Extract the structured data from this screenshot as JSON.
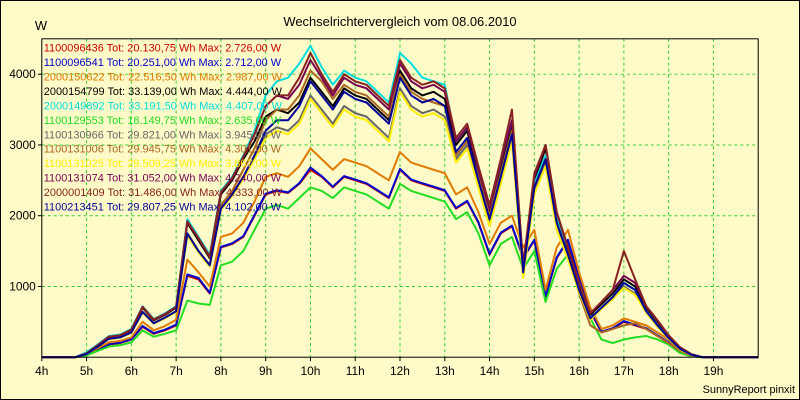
{
  "chart_data": {
    "type": "line",
    "title": "Wechselrichtervergleich vom 08.06.2010",
    "ylabel": "W",
    "footer": "SunnyReport pinxit",
    "ylim": [
      0,
      4500
    ],
    "yticks": [
      1000,
      2000,
      3000,
      4000
    ],
    "xticks": [
      "4h",
      "5h",
      "6h",
      "7h",
      "8h",
      "9h",
      "10h",
      "11h",
      "12h",
      "13h",
      "14h",
      "15h",
      "16h",
      "17h",
      "18h",
      "19h"
    ],
    "x_start_hour": 4.0,
    "x_end_hour": 20.0,
    "legend_placement": "top-left",
    "grid": true,
    "colors": {
      "background": "#fffbc8",
      "grid": "#33cc33",
      "axis": "#000000"
    },
    "series": [
      {
        "name": "1100096436 Tot: 20.130,75 Wh Max: 2.726,00 W",
        "color": "#cc0000",
        "values": [
          0,
          0,
          0,
          0,
          30,
          110,
          180,
          200,
          250,
          430,
          330,
          380,
          450,
          1150,
          1100,
          900,
          1550,
          1600,
          1700,
          2000,
          2300,
          2350,
          2320,
          2450,
          2650,
          2550,
          2400,
          2550,
          2500,
          2450,
          2350,
          2250,
          2650,
          2500,
          2450,
          2400,
          2350,
          2100,
          2200,
          1900,
          1450,
          1750,
          1850,
          1400,
          1650,
          850,
          1400,
          1650,
          1100,
          650,
          350,
          400,
          500,
          450,
          400,
          300,
          200,
          80,
          20,
          0,
          0,
          0,
          0,
          0,
          0
        ]
      },
      {
        "name": "1100096541 Tot: 20.251,00 Wh Max: 2.712,00 W",
        "color": "#0000cc",
        "values": [
          0,
          0,
          0,
          0,
          30,
          110,
          185,
          205,
          255,
          440,
          340,
          390,
          460,
          1170,
          1120,
          910,
          1560,
          1610,
          1710,
          2010,
          2310,
          2360,
          2330,
          2460,
          2680,
          2560,
          2410,
          2560,
          2510,
          2460,
          2360,
          2260,
          2660,
          2510,
          2460,
          2410,
          2360,
          2110,
          2210,
          1910,
          1460,
          1760,
          1860,
          1410,
          1660,
          860,
          1410,
          1660,
          1110,
          660,
          360,
          410,
          510,
          460,
          410,
          310,
          210,
          85,
          25,
          0,
          0,
          0,
          0,
          0,
          0
        ]
      },
      {
        "name": "2000150622 Tot: 22.516,50 Wh Max: 2.987,00 W",
        "color": "#e07a00",
        "values": [
          0,
          0,
          0,
          0,
          35,
          130,
          210,
          230,
          280,
          500,
          380,
          440,
          530,
          1380,
          1200,
          1000,
          1700,
          1750,
          1900,
          2200,
          2550,
          2600,
          2550,
          2700,
          2950,
          2800,
          2650,
          2800,
          2750,
          2700,
          2600,
          2500,
          2900,
          2750,
          2700,
          2650,
          2600,
          2300,
          2400,
          2050,
          1600,
          1900,
          2000,
          1550,
          1800,
          950,
          1550,
          1800,
          1200,
          700,
          400,
          450,
          550,
          500,
          450,
          350,
          250,
          100,
          30,
          0,
          0,
          0,
          0,
          0,
          0
        ]
      },
      {
        "name": "2000154799 Tot: 33.139,00 Wh Max: 4.444,00 W",
        "color": "#000000",
        "values": [
          0,
          0,
          0,
          0,
          50,
          160,
          280,
          300,
          380,
          700,
          520,
          600,
          700,
          1900,
          1650,
          1400,
          2300,
          2500,
          2800,
          3050,
          3400,
          3500,
          3450,
          3600,
          3950,
          3750,
          3550,
          3800,
          3700,
          3650,
          3500,
          3350,
          4050,
          3800,
          3700,
          3750,
          3650,
          3000,
          3200,
          2600,
          2050,
          2700,
          3300,
          1250,
          2500,
          2950,
          2000,
          1500,
          1000,
          600,
          750,
          900,
          1100,
          1000,
          700,
          500,
          300,
          130,
          40,
          0,
          0,
          0,
          0,
          0,
          0
        ]
      },
      {
        "name": "2000149892 Tot: 33.191,50 Wh Max: 4.407,00 W",
        "color": "#00dddd",
        "values": [
          0,
          0,
          0,
          0,
          70,
          180,
          300,
          320,
          400,
          720,
          540,
          620,
          720,
          1950,
          1700,
          1450,
          2350,
          2550,
          2850,
          3200,
          3700,
          3900,
          3950,
          4150,
          4400,
          4100,
          3850,
          4050,
          3950,
          3900,
          3750,
          3600,
          4300,
          4150,
          3950,
          3900,
          3850,
          3050,
          3250,
          2650,
          2100,
          2750,
          3350,
          1300,
          2450,
          2850,
          1950,
          1450,
          950,
          550,
          700,
          850,
          1050,
          950,
          650,
          450,
          280,
          120,
          35,
          0,
          0,
          0,
          0,
          0,
          0
        ]
      },
      {
        "name": "1100129553 Tot: 18.149,75 Wh Max: 2.635,00 W",
        "color": "#22dd22",
        "values": [
          0,
          0,
          0,
          0,
          25,
          90,
          150,
          170,
          210,
          380,
          290,
          330,
          380,
          800,
          760,
          740,
          1300,
          1350,
          1500,
          1800,
          2100,
          2150,
          2100,
          2250,
          2400,
          2350,
          2250,
          2400,
          2350,
          2300,
          2200,
          2100,
          2450,
          2350,
          2300,
          2250,
          2200,
          1950,
          2050,
          1750,
          1300,
          1600,
          1700,
          1250,
          1500,
          780,
          1250,
          1450,
          950,
          550,
          250,
          200,
          250,
          280,
          300,
          250,
          180,
          60,
          15,
          0,
          0,
          0,
          0,
          0,
          0
        ]
      },
      {
        "name": "1100130966 Tot: 29.821,00 Wh Max: 3.945,00 W",
        "color": "#666666",
        "values": [
          0,
          0,
          0,
          0,
          45,
          150,
          260,
          280,
          350,
          640,
          480,
          560,
          650,
          1750,
          1500,
          1300,
          2100,
          2300,
          2550,
          2850,
          3150,
          3250,
          3200,
          3350,
          3700,
          3500,
          3300,
          3550,
          3450,
          3400,
          3250,
          3100,
          3800,
          3550,
          3450,
          3500,
          3400,
          2800,
          3000,
          2450,
          1900,
          2500,
          3100,
          1150,
          2350,
          2750,
          1850,
          1400,
          950,
          550,
          700,
          850,
          1000,
          900,
          650,
          450,
          270,
          120,
          35,
          0,
          0,
          0,
          0,
          0,
          0
        ]
      },
      {
        "name": "1100131006 Tot: 29.945,75 Wh Max: 4.301,00 W",
        "color": "#aa6622",
        "values": [
          0,
          0,
          0,
          0,
          45,
          150,
          260,
          280,
          350,
          640,
          480,
          560,
          650,
          1750,
          1500,
          1300,
          2150,
          2350,
          2650,
          2950,
          3350,
          3500,
          3500,
          3700,
          4050,
          3900,
          3650,
          3850,
          3750,
          3700,
          3550,
          3400,
          4000,
          3750,
          3650,
          3600,
          3550,
          2850,
          3050,
          2550,
          2000,
          2600,
          3200,
          1200,
          2400,
          2800,
          1900,
          1450,
          900,
          450,
          350,
          400,
          450,
          480,
          400,
          300,
          200,
          90,
          25,
          0,
          0,
          0,
          0,
          0,
          0
        ]
      },
      {
        "name": "1100131025 Tot: 29.509,25 Wh Max: 3.867,00 W",
        "color": "#ffee00",
        "values": [
          0,
          0,
          0,
          0,
          45,
          150,
          255,
          275,
          345,
          630,
          475,
          550,
          640,
          1720,
          1480,
          1280,
          2080,
          2280,
          2520,
          2800,
          3100,
          3200,
          3150,
          3300,
          3650,
          3450,
          3250,
          3500,
          3400,
          3350,
          3200,
          3050,
          3750,
          3500,
          3400,
          3450,
          3350,
          2750,
          2950,
          2400,
          1850,
          2450,
          3050,
          1120,
          2300,
          2700,
          1800,
          1380,
          920,
          530,
          680,
          820,
          980,
          880,
          630,
          430,
          260,
          110,
          30,
          0,
          0,
          0,
          0,
          0,
          0
        ]
      },
      {
        "name": "1100131074 Tot: 31.052,00 Wh Max: 4.240,00 W",
        "color": "#770055",
        "values": [
          0,
          0,
          0,
          0,
          55,
          170,
          290,
          310,
          390,
          710,
          530,
          610,
          710,
          1920,
          1680,
          1420,
          2330,
          2530,
          2830,
          3150,
          3550,
          3700,
          3650,
          3850,
          4200,
          3950,
          3700,
          3950,
          3850,
          3800,
          3650,
          3500,
          4150,
          3900,
          3800,
          3850,
          3750,
          3050,
          3250,
          2650,
          2100,
          2750,
          3350,
          1300,
          2550,
          3000,
          2050,
          1550,
          1050,
          620,
          780,
          950,
          1150,
          1050,
          720,
          520,
          310,
          140,
          45,
          0,
          0,
          0,
          0,
          0,
          0
        ]
      },
      {
        "name": "2000001409 Tot: 31.486,00 Wh Max: 4.333,00 W",
        "color": "#882222",
        "values": [
          0,
          0,
          0,
          0,
          55,
          170,
          290,
          310,
          390,
          710,
          530,
          610,
          710,
          1920,
          1680,
          1420,
          2330,
          2530,
          2830,
          3150,
          3550,
          3700,
          3700,
          3950,
          4300,
          4000,
          3750,
          4000,
          3900,
          3850,
          3700,
          3550,
          4200,
          3950,
          3850,
          3900,
          3800,
          3100,
          3300,
          2700,
          2150,
          2800,
          3500,
          1300,
          2600,
          3000,
          2050,
          1550,
          1050,
          620,
          780,
          950,
          1500,
          1100,
          720,
          520,
          310,
          140,
          45,
          0,
          0,
          0,
          0,
          0,
          0
        ]
      },
      {
        "name": "1100213451 Tot: 29.807,25 Wh Max: 4.102,00 W",
        "color": "#000099",
        "values": [
          0,
          0,
          0,
          0,
          45,
          150,
          260,
          280,
          350,
          640,
          480,
          560,
          650,
          1750,
          1500,
          1300,
          2100,
          2300,
          2550,
          2850,
          3200,
          3350,
          3350,
          3550,
          3900,
          3700,
          3500,
          3750,
          3650,
          3600,
          3450,
          3300,
          3950,
          3700,
          3600,
          3650,
          3550,
          2900,
          3100,
          2500,
          1950,
          2550,
          3150,
          1200,
          2400,
          2800,
          1900,
          1450,
          950,
          550,
          700,
          850,
          1050,
          950,
          650,
          450,
          270,
          120,
          35,
          0,
          0,
          0,
          0,
          0,
          0
        ]
      }
    ]
  }
}
